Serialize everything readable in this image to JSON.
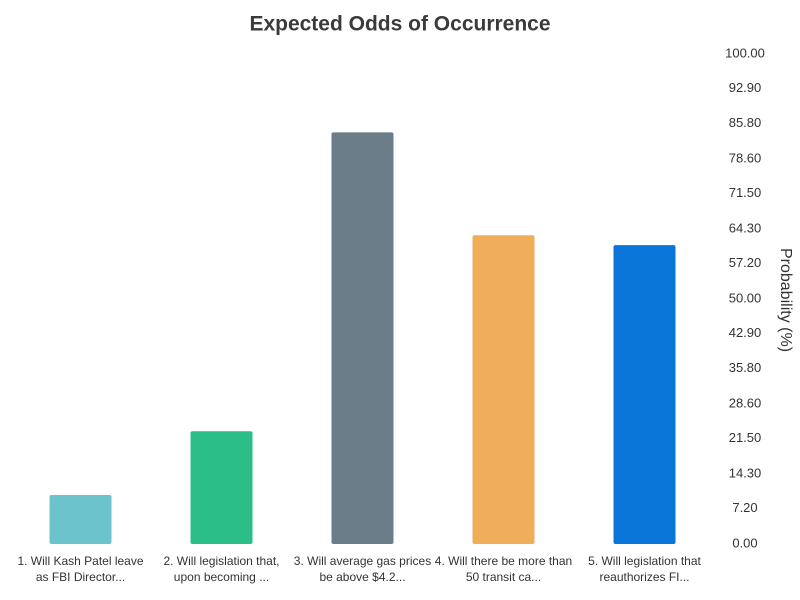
{
  "chart_data": {
    "type": "bar",
    "title": "Expected Odds of Occurrence",
    "y_label": "Probability (%)",
    "categories": [
      "1. Will Kash Patel leave as FBI Director...",
      "2. Will legislation that, upon becoming ...",
      "3. Will average gas prices be above $4.2...",
      "4. Will there be more than 50 transit ca...",
      "5. Will legislation that reauthorizes FI..."
    ],
    "values": [
      10,
      23,
      84,
      63,
      61
    ],
    "colors": [
      "#6cc3cb",
      "#2bbf87",
      "#6a7d89",
      "#f0ae5a",
      "#0a75d8"
    ],
    "ylim": [
      0,
      100
    ],
    "yticks": [
      {
        "value": 0,
        "label": "0.00"
      },
      {
        "value": 7.2,
        "label": "7.20"
      },
      {
        "value": 14.3,
        "label": "14.30"
      },
      {
        "value": 21.5,
        "label": "21.50"
      },
      {
        "value": 28.6,
        "label": "28.60"
      },
      {
        "value": 35.8,
        "label": "35.80"
      },
      {
        "value": 42.9,
        "label": "42.90"
      },
      {
        "value": 50,
        "label": "50.00"
      },
      {
        "value": 57.2,
        "label": "57.20"
      },
      {
        "value": 64.3,
        "label": "64.30"
      },
      {
        "value": 71.5,
        "label": "71.50"
      },
      {
        "value": 78.6,
        "label": "78.60"
      },
      {
        "value": 85.8,
        "label": "85.80"
      },
      {
        "value": 92.9,
        "label": "92.90"
      },
      {
        "value": 100,
        "label": "100.00"
      }
    ],
    "y_axis_side": "right",
    "grid": false
  }
}
